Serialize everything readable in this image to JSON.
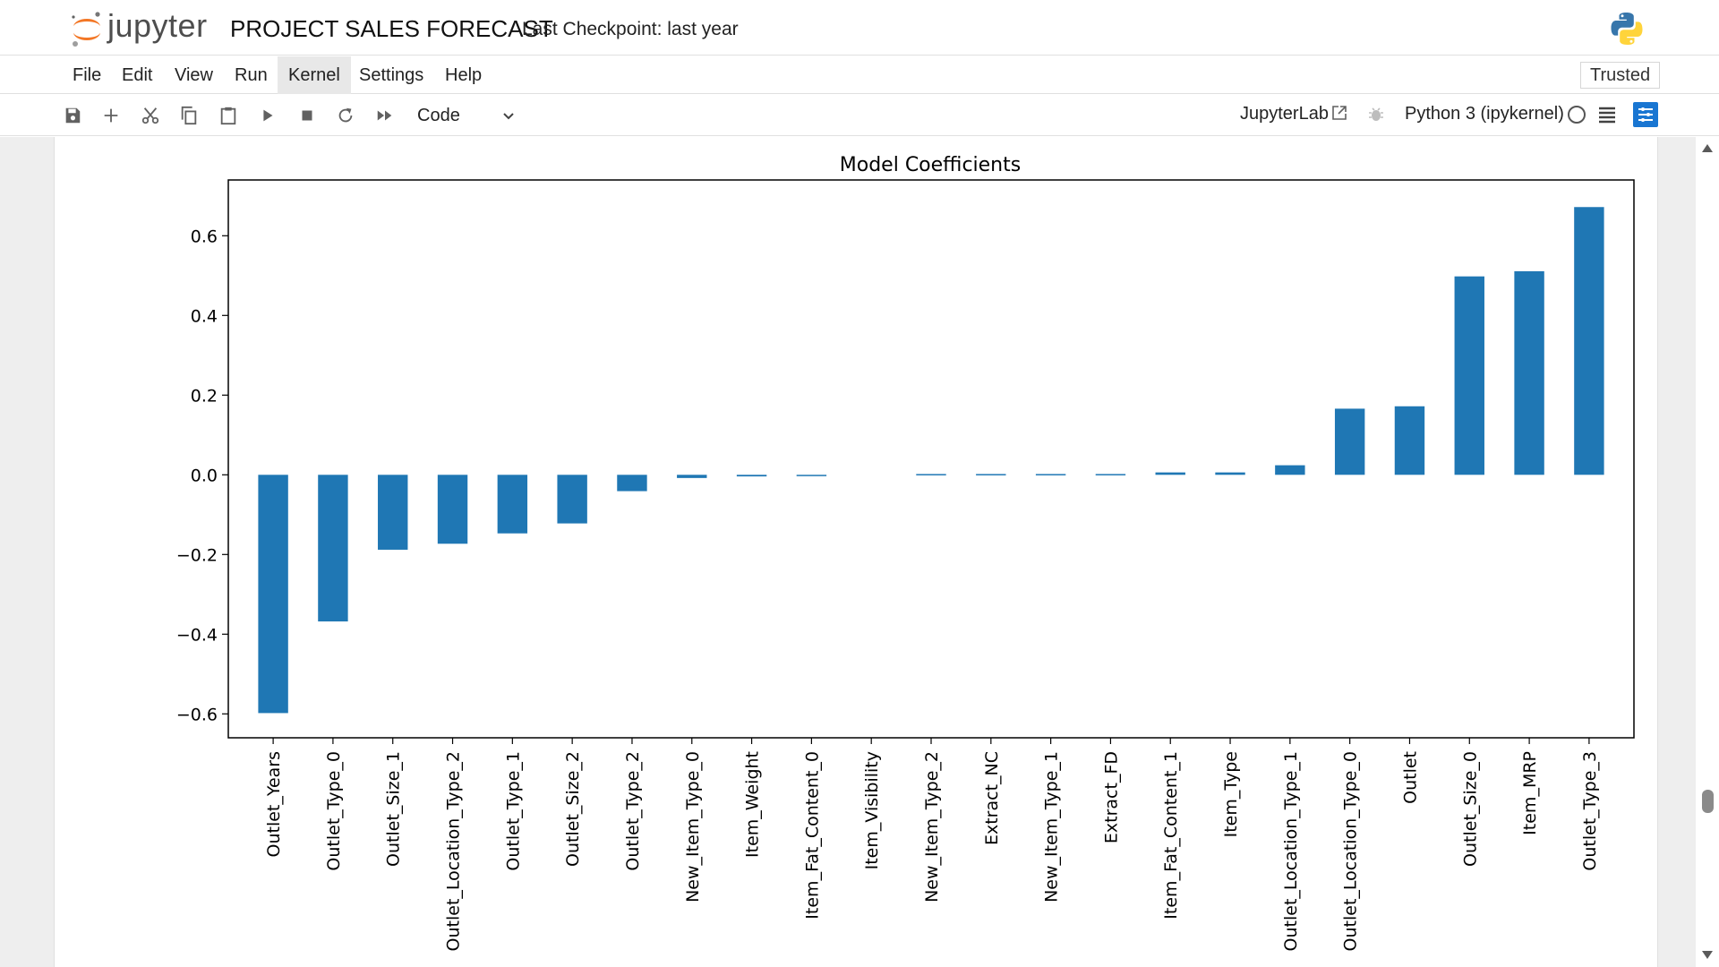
{
  "header": {
    "logo_text": "jupyter",
    "notebook_title": "PROJECT SALES FORECAST",
    "checkpoint": "Last Checkpoint: last year"
  },
  "menu": {
    "items": [
      {
        "label": "File"
      },
      {
        "label": "Edit"
      },
      {
        "label": "View"
      },
      {
        "label": "Run"
      },
      {
        "label": "Kernel"
      },
      {
        "label": "Settings"
      },
      {
        "label": "Help"
      }
    ],
    "active": "Kernel",
    "trusted": "Trusted"
  },
  "toolbar": {
    "buttons": [
      "save-icon",
      "add-cell-icon",
      "cut-icon",
      "copy-icon",
      "paste-icon",
      "run-icon",
      "stop-icon",
      "restart-icon",
      "run-all-icon"
    ],
    "cell_type": "Code",
    "jupyterlab_label": "JupyterLab",
    "kernel": "Python 3 (ipykernel)"
  },
  "colors": {
    "bar": "#1f77b4",
    "accent": "#1976d2"
  },
  "chart_data": {
    "type": "bar",
    "title": "Model Coefficients",
    "xlabel": "",
    "ylabel": "",
    "categories": [
      "Outlet_Years",
      "Outlet_Type_0",
      "Outlet_Size_1",
      "Outlet_Location_Type_2",
      "Outlet_Type_1",
      "Outlet_Size_2",
      "Outlet_Type_2",
      "New_Item_Type_0",
      "Item_Weight",
      "Item_Fat_Content_0",
      "Item_Visibility",
      "New_Item_Type_2",
      "Extract_NC",
      "New_Item_Type_1",
      "Extract_FD",
      "Item_Fat_Content_1",
      "Item_Type",
      "Outlet_Location_Type_1",
      "Outlet_Location_Type_0",
      "Outlet",
      "Outlet_Size_0",
      "Item_MRP",
      "Outlet_Type_3"
    ],
    "values": [
      -0.598,
      -0.368,
      -0.188,
      -0.173,
      -0.147,
      -0.122,
      -0.041,
      -0.008,
      -0.004,
      -0.002,
      0.0,
      0.002,
      0.002,
      0.002,
      0.002,
      0.006,
      0.006,
      0.024,
      0.166,
      0.172,
      0.498,
      0.511,
      0.672
    ],
    "ylim": [
      -0.66,
      0.74
    ],
    "yticks": [
      -0.6,
      -0.4,
      -0.2,
      0.0,
      0.2,
      0.4,
      0.6
    ],
    "ytick_labels": [
      "−0.6",
      "−0.4",
      "−0.2",
      "0.0",
      "0.2",
      "0.4",
      "0.6"
    ],
    "grid": false,
    "legend": "none"
  }
}
